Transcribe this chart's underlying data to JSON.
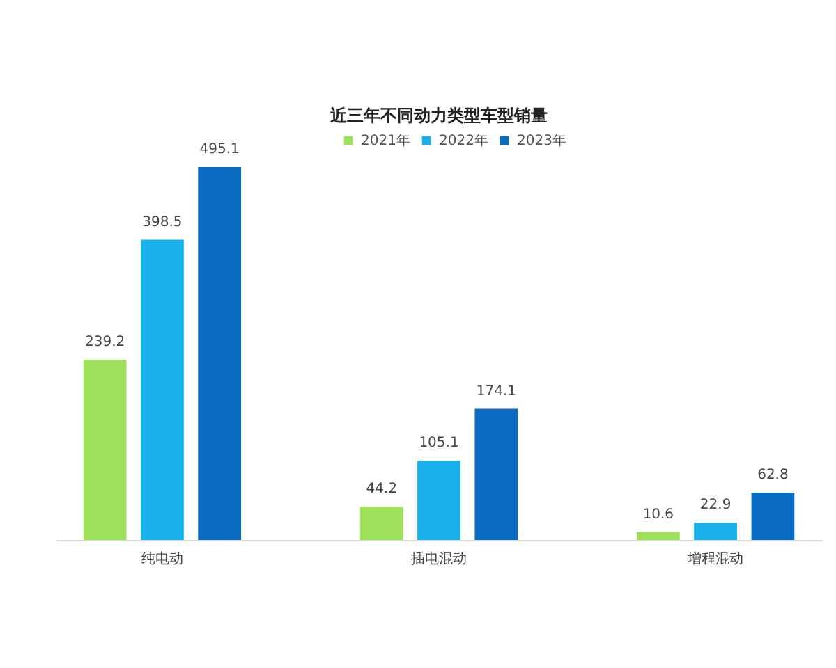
{
  "chart_data": {
    "type": "bar",
    "title": "近三年不同动力类型车型销量",
    "categories": [
      "纯电动",
      "插电混动",
      "增程混动"
    ],
    "series": [
      {
        "name": "2021年",
        "color": "#9de05a",
        "values": [
          239.2,
          44.2,
          10.6
        ]
      },
      {
        "name": "2022年",
        "color": "#1ab0ec",
        "values": [
          398.5,
          105.1,
          22.9
        ]
      },
      {
        "name": "2023年",
        "color": "#0a6cc0",
        "values": [
          495.1,
          174.1,
          62.8
        ]
      }
    ],
    "data_labels": true,
    "legend": "top",
    "grid": false
  }
}
